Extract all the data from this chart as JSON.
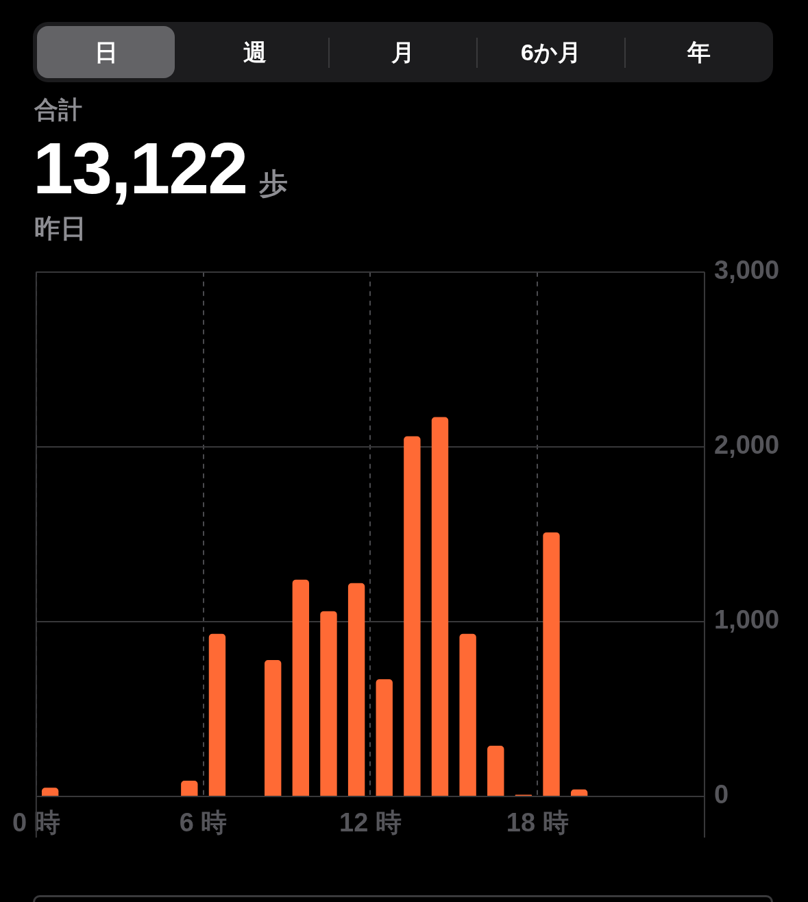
{
  "chart_data": {
    "type": "histogram",
    "title": "13,122 歩",
    "subtitle": "昨日",
    "annotations": [
      "日",
      "週",
      "月",
      "6か月",
      "年",
      "合計"
    ],
    "bins": [
      0,
      1,
      2,
      3,
      4,
      5,
      6,
      7,
      8,
      9,
      10,
      11,
      12,
      13,
      14,
      15,
      16,
      17,
      18,
      19,
      20,
      21,
      22,
      23,
      24
    ],
    "values": [
      50,
      null,
      null,
      null,
      null,
      90,
      930,
      null,
      780,
      1240,
      1060,
      1220,
      670,
      2060,
      2170,
      930,
      290,
      10,
      1510,
      40,
      null,
      null,
      null,
      null
    ],
    "color": "#ff6a35",
    "xlim": [
      0,
      24
    ],
    "xticks": [
      {
        "value": 0,
        "label": "0 時"
      },
      {
        "value": 6,
        "label": "6 時"
      },
      {
        "value": 12,
        "label": "12 時"
      },
      {
        "value": 18,
        "label": "18 時"
      }
    ],
    "ylim": [
      0,
      3000
    ],
    "yticks": [
      0,
      {
        "value": 1000,
        "label": "1,000"
      },
      {
        "value": 2000,
        "label": "2,000"
      },
      {
        "value": 3000,
        "label": "3,000"
      }
    ],
    "grid": true
  }
}
